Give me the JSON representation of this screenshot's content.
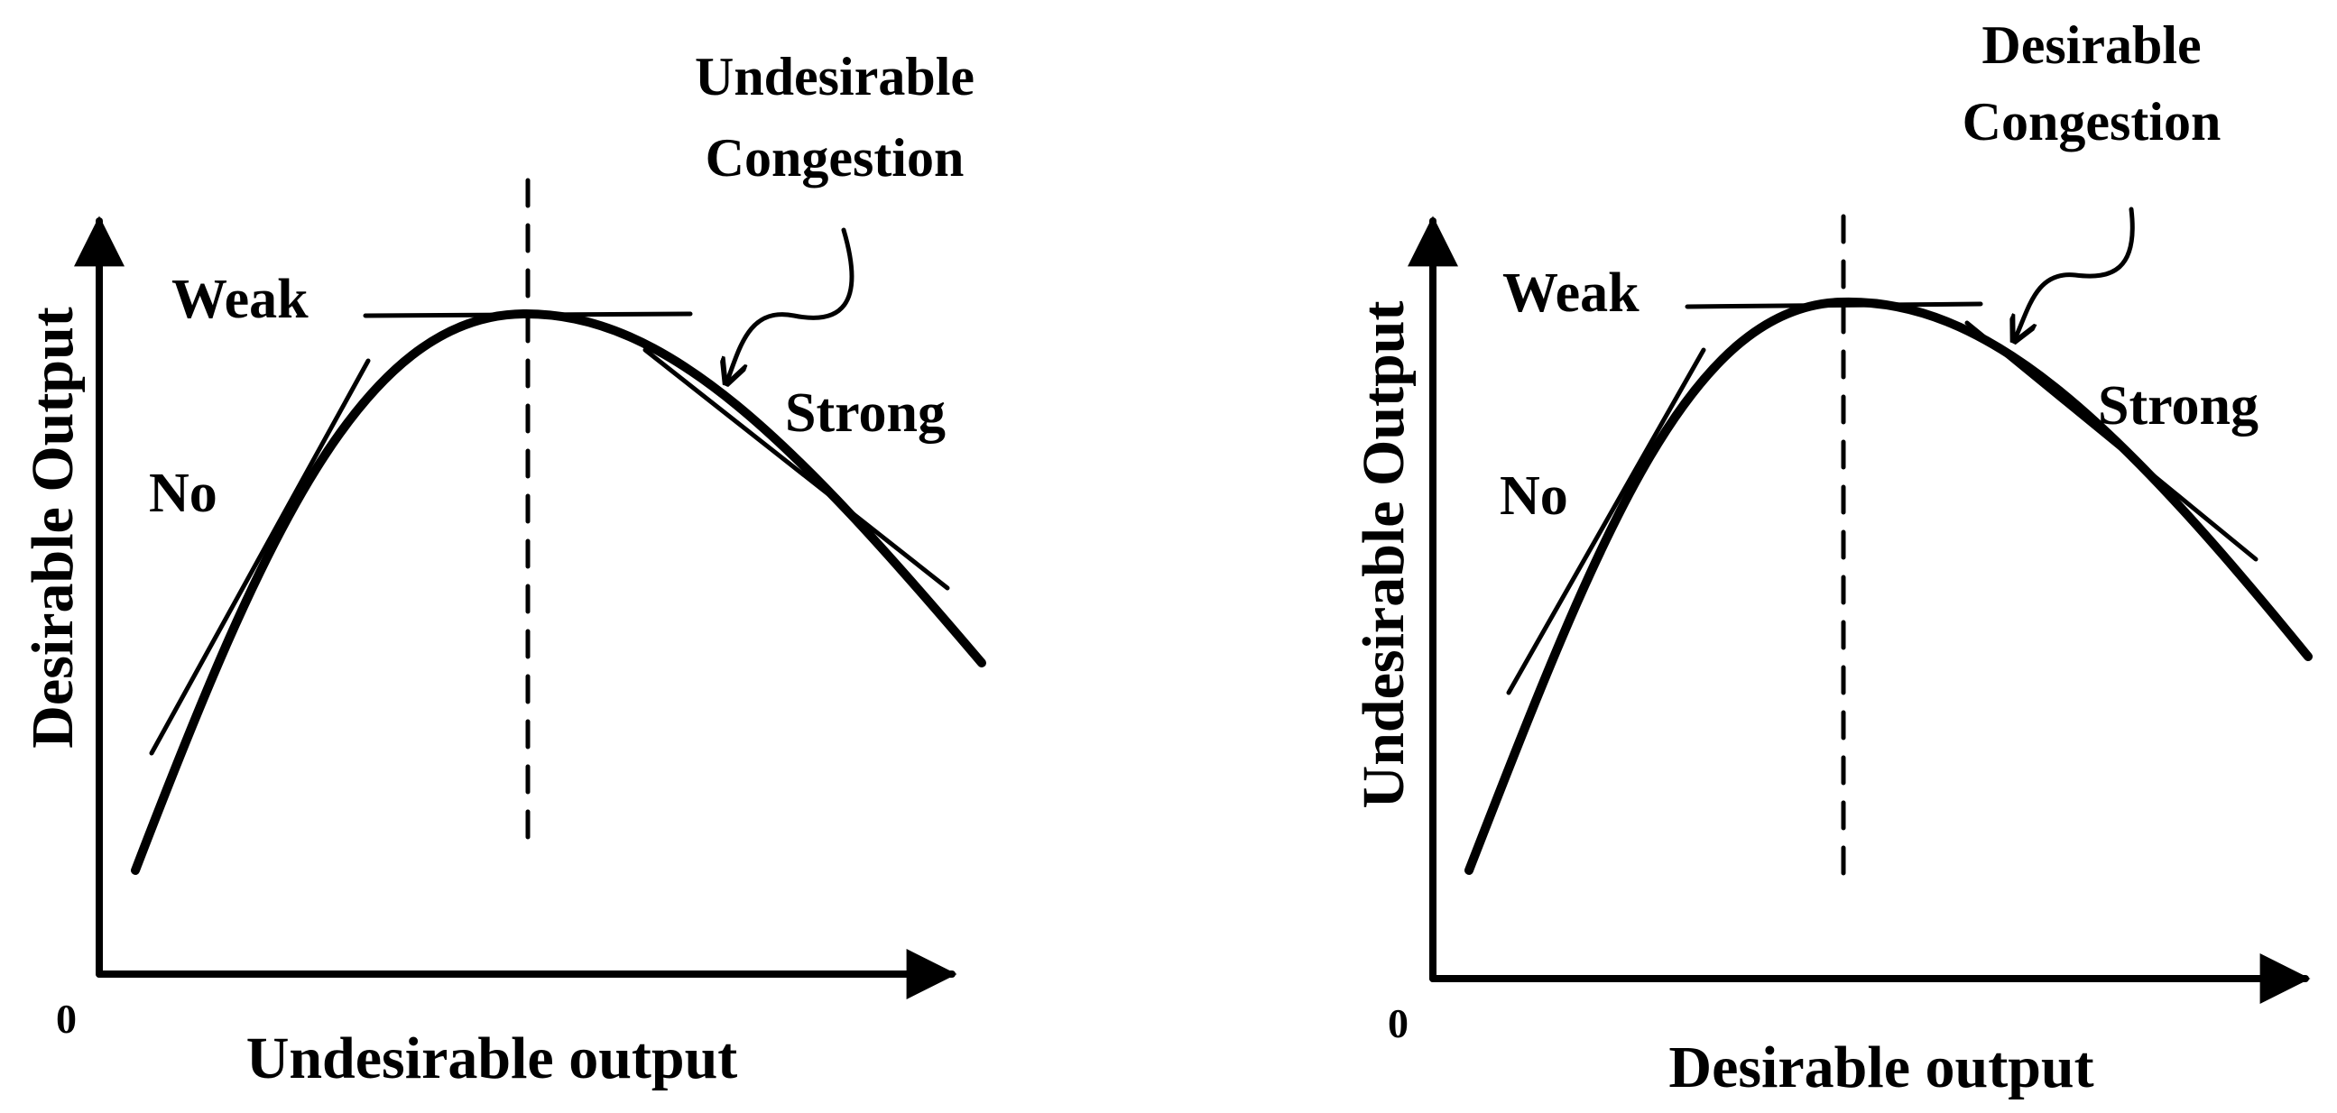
{
  "panels": [
    {
      "id": "left",
      "y_axis_label": "Desirable Output",
      "x_axis_label": "Undesirable output",
      "origin_label": "0",
      "callout": [
        "Undesirable",
        "Congestion"
      ],
      "region_labels": {
        "no": "No",
        "weak": "Weak",
        "strong": "Strong"
      }
    },
    {
      "id": "right",
      "y_axis_label": "Undesirable Output",
      "x_axis_label": "Desirable output",
      "origin_label": "0",
      "callout": [
        "Desirable",
        "Congestion"
      ],
      "region_labels": {
        "no": "No",
        "weak": "Weak",
        "strong": "Strong"
      }
    }
  ]
}
